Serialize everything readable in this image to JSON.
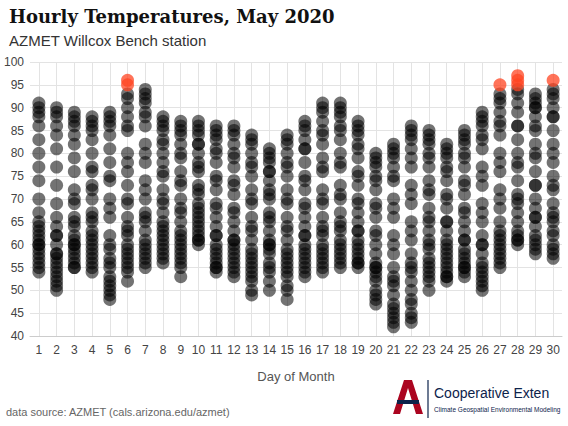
{
  "chart_data": {
    "type": "scatter",
    "title": "Hourly Temperatures, May 2020",
    "subtitle": "AZMET Willcox Bench station",
    "x_label": "Day of Month",
    "source": "data source: AZMET (cals.arizona.edu/azmet)",
    "credit": "Cooperative Exten",
    "credit_subtitle": "Climate Geospatial Environmental Modeling",
    "grid": true,
    "xlim": [
      0.5,
      30.5
    ],
    "xticks": [
      1,
      2,
      3,
      4,
      5,
      6,
      7,
      8,
      9,
      10,
      11,
      12,
      13,
      14,
      15,
      16,
      17,
      18,
      19,
      20,
      21,
      22,
      23,
      24,
      25,
      26,
      27,
      28,
      29,
      30
    ],
    "ylim": [
      40,
      100
    ],
    "yticks": [
      40,
      45,
      50,
      55,
      60,
      65,
      70,
      75,
      80,
      85,
      90,
      95,
      100
    ],
    "x": [
      1,
      2,
      3,
      4,
      5,
      6,
      7,
      8,
      9,
      10,
      11,
      12,
      13,
      14,
      15,
      16,
      17,
      18,
      19,
      20,
      21,
      22,
      23,
      24,
      25,
      26,
      27,
      28,
      29,
      30
    ],
    "series": [
      {
        "color": "#000000",
        "marker": "circle",
        "values": [
          [
            91,
            90,
            89,
            88,
            86,
            83,
            80,
            77,
            74,
            70,
            67,
            65,
            63,
            62,
            61,
            60,
            59,
            58,
            57,
            56,
            55,
            54,
            60,
            64
          ],
          [
            90,
            89,
            88,
            86,
            84,
            81,
            77,
            73,
            69,
            66,
            64,
            62,
            60,
            58,
            57,
            56,
            55,
            54,
            53,
            52,
            51,
            50,
            58,
            62
          ],
          [
            89,
            88,
            87,
            86,
            84,
            82,
            79,
            76,
            72,
            69,
            66,
            64,
            62,
            61,
            60,
            59,
            58,
            57,
            56,
            55,
            55,
            60,
            65,
            70
          ],
          [
            88,
            87,
            86,
            85,
            83,
            80,
            77,
            73,
            70,
            67,
            65,
            63,
            61,
            60,
            59,
            58,
            57,
            56,
            55,
            54,
            62,
            66,
            72,
            76
          ],
          [
            89,
            88,
            87,
            86,
            84,
            81,
            78,
            74,
            70,
            66,
            62,
            59,
            57,
            55,
            53,
            52,
            51,
            50,
            49,
            48,
            56,
            60,
            68,
            75
          ],
          [
            93,
            92,
            90,
            88,
            85,
            80,
            76,
            73,
            69,
            66,
            64,
            62,
            60,
            59,
            58,
            57,
            56,
            55,
            54,
            52,
            63,
            70,
            78,
            86
          ],
          [
            94,
            93,
            92,
            91,
            89,
            86,
            82,
            78,
            74,
            70,
            67,
            65,
            63,
            61,
            60,
            59,
            58,
            57,
            56,
            55,
            66,
            72,
            80,
            88
          ],
          [
            88,
            87,
            86,
            85,
            83,
            80,
            78,
            75,
            72,
            69,
            67,
            65,
            63,
            62,
            61,
            60,
            59,
            58,
            57,
            56,
            64,
            70,
            76,
            82
          ],
          [
            87,
            86,
            85,
            84,
            82,
            79,
            76,
            73,
            70,
            67,
            65,
            63,
            61,
            60,
            59,
            58,
            57,
            56,
            55,
            53,
            62,
            68,
            74,
            80
          ],
          [
            87,
            86,
            85,
            84,
            82,
            80,
            78,
            76,
            73,
            71,
            69,
            67,
            66,
            65,
            64,
            63,
            62,
            61,
            61,
            60,
            68,
            72,
            77,
            82
          ],
          [
            86,
            85,
            84,
            83,
            81,
            78,
            75,
            72,
            69,
            66,
            64,
            62,
            60,
            59,
            58,
            57,
            56,
            55,
            55,
            54,
            62,
            68,
            74,
            80
          ],
          [
            86,
            85,
            84,
            82,
            80,
            77,
            74,
            71,
            68,
            65,
            63,
            61,
            60,
            59,
            58,
            57,
            56,
            55,
            54,
            53,
            61,
            67,
            73,
            79
          ],
          [
            84,
            83,
            82,
            80,
            78,
            75,
            72,
            69,
            66,
            63,
            61,
            59,
            57,
            56,
            55,
            54,
            53,
            52,
            50,
            49,
            58,
            64,
            70,
            77
          ],
          [
            81,
            80,
            79,
            78,
            76,
            74,
            72,
            70,
            67,
            65,
            63,
            61,
            60,
            59,
            58,
            56,
            55,
            54,
            52,
            50,
            60,
            66,
            71,
            76
          ],
          [
            84,
            83,
            82,
            80,
            78,
            75,
            72,
            69,
            66,
            63,
            61,
            59,
            57,
            56,
            55,
            54,
            53,
            51,
            50,
            48,
            58,
            64,
            70,
            77
          ],
          [
            87,
            86,
            85,
            83,
            81,
            78,
            75,
            72,
            69,
            66,
            64,
            62,
            60,
            59,
            58,
            57,
            56,
            55,
            54,
            53,
            62,
            68,
            74,
            81
          ],
          [
            91,
            90,
            89,
            87,
            85,
            82,
            79,
            76,
            72,
            69,
            66,
            64,
            62,
            60,
            59,
            58,
            57,
            56,
            55,
            54,
            63,
            70,
            77,
            84
          ],
          [
            91,
            90,
            89,
            88,
            86,
            83,
            80,
            77,
            73,
            70,
            67,
            65,
            63,
            61,
            60,
            59,
            58,
            57,
            56,
            55,
            64,
            71,
            78,
            85
          ],
          [
            87,
            86,
            85,
            84,
            82,
            79,
            76,
            73,
            70,
            67,
            65,
            63,
            61,
            60,
            59,
            58,
            57,
            56,
            56,
            55,
            63,
            69,
            75,
            81
          ],
          [
            80,
            79,
            78,
            77,
            75,
            72,
            69,
            66,
            63,
            60,
            58,
            56,
            55,
            54,
            53,
            52,
            50,
            49,
            48,
            47,
            55,
            62,
            68,
            74
          ],
          [
            82,
            81,
            80,
            79,
            77,
            74,
            70,
            66,
            62,
            58,
            55,
            53,
            51,
            49,
            47,
            46,
            45,
            44,
            43,
            42,
            52,
            60,
            68,
            75
          ],
          [
            86,
            85,
            84,
            83,
            81,
            77,
            73,
            69,
            65,
            61,
            58,
            56,
            54,
            52,
            50,
            48,
            47,
            45,
            44,
            43,
            55,
            63,
            71,
            79
          ],
          [
            85,
            84,
            83,
            82,
            80,
            77,
            74,
            71,
            68,
            65,
            63,
            61,
            59,
            57,
            56,
            55,
            54,
            53,
            52,
            50,
            60,
            66,
            72,
            79
          ],
          [
            82,
            81,
            80,
            79,
            77,
            74,
            71,
            68,
            65,
            63,
            61,
            59,
            58,
            57,
            56,
            55,
            54,
            53,
            53,
            52,
            60,
            65,
            70,
            76
          ],
          [
            85,
            84,
            83,
            82,
            80,
            77,
            74,
            71,
            68,
            65,
            63,
            61,
            59,
            58,
            57,
            56,
            55,
            55,
            54,
            53,
            61,
            67,
            73,
            79
          ],
          [
            89,
            88,
            87,
            86,
            84,
            81,
            77,
            73,
            69,
            65,
            62,
            60,
            58,
            56,
            55,
            54,
            53,
            52,
            51,
            50,
            60,
            67,
            75,
            83
          ],
          [
            93,
            92,
            91,
            89,
            87,
            84,
            80,
            76,
            72,
            68,
            65,
            63,
            61,
            60,
            59,
            58,
            57,
            56,
            55,
            62,
            70,
            78,
            86
          ],
          [
            94,
            93,
            91,
            89,
            86,
            83,
            80,
            77,
            74,
            71,
            69,
            67,
            65,
            63,
            62,
            61,
            61,
            60,
            70,
            78,
            86
          ],
          [
            93,
            92,
            91,
            90,
            88,
            85,
            82,
            79,
            76,
            73,
            70,
            68,
            66,
            64,
            62,
            61,
            60,
            59,
            58,
            66,
            73,
            80,
            86,
            90
          ],
          [
            94,
            93,
            92,
            90,
            88,
            85,
            82,
            78,
            75,
            72,
            69,
            67,
            65,
            63,
            62,
            60,
            59,
            58,
            57,
            66,
            73,
            80,
            88
          ]
        ]
      },
      {
        "color": "#ff4422",
        "marker": "circle",
        "values": [
          [],
          [],
          [],
          [],
          [],
          [
            96,
            95
          ],
          [],
          [],
          [],
          [],
          [],
          [],
          [],
          [],
          [],
          [],
          [],
          [],
          [],
          [],
          [],
          [],
          [],
          [],
          [],
          [],
          [
            95
          ],
          [
            97,
            96,
            95
          ],
          [],
          [
            96
          ]
        ]
      }
    ]
  }
}
